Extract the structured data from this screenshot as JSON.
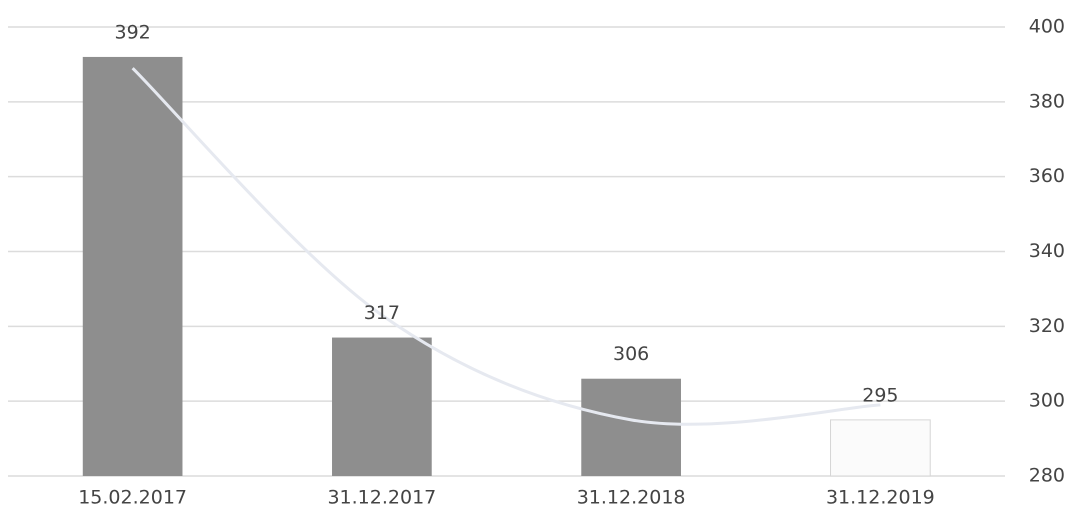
{
  "chart_data": {
    "type": "bar",
    "categories": [
      "15.02.2017",
      "31.12.2017",
      "31.12.2018",
      "31.12.2019"
    ],
    "values": [
      392,
      317,
      306,
      295
    ],
    "colors": [
      "#8e8e8e",
      "#8e8e8e",
      "#8e8e8e",
      "#fbfbfb"
    ],
    "edgecolor": "#d6d6d6",
    "ylim": [
      280,
      400
    ],
    "yticks": [
      280,
      300,
      320,
      340,
      360,
      380,
      400
    ],
    "yaxis_side": "right",
    "grid": true,
    "trend": {
      "type": "line",
      "color": "#e6e9f0",
      "values": [
        389,
        323,
        295,
        299
      ]
    }
  }
}
